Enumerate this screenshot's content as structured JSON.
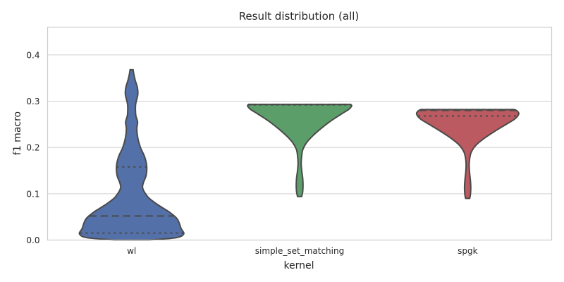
{
  "chart_data": {
    "type": "violin",
    "title": "Result distribution (all)",
    "xlabel": "kernel",
    "ylabel": "f1 macro",
    "ylim": [
      0,
      0.46
    ],
    "yticks": [
      0.0,
      0.1,
      0.2,
      0.3,
      0.4
    ],
    "ytick_labels": [
      "0.0",
      "0.1",
      "0.2",
      "0.3",
      "0.4"
    ],
    "grid": true,
    "series": [
      {
        "category": "wl",
        "color": "#5470a8",
        "density": [
          [
            0.0,
            0.34
          ],
          [
            0.005,
            0.85
          ],
          [
            0.013,
            1.0
          ],
          [
            0.025,
            0.95
          ],
          [
            0.045,
            0.88
          ],
          [
            0.06,
            0.73
          ],
          [
            0.075,
            0.52
          ],
          [
            0.09,
            0.34
          ],
          [
            0.105,
            0.24
          ],
          [
            0.115,
            0.21
          ],
          [
            0.125,
            0.23
          ],
          [
            0.14,
            0.28
          ],
          [
            0.16,
            0.29
          ],
          [
            0.18,
            0.25
          ],
          [
            0.2,
            0.17
          ],
          [
            0.22,
            0.12
          ],
          [
            0.24,
            0.1
          ],
          [
            0.255,
            0.115
          ],
          [
            0.27,
            0.08
          ],
          [
            0.29,
            0.075
          ],
          [
            0.3,
            0.09
          ],
          [
            0.315,
            0.12
          ],
          [
            0.33,
            0.11
          ],
          [
            0.345,
            0.07
          ],
          [
            0.36,
            0.04
          ],
          [
            0.368,
            0.03
          ]
        ],
        "quartiles": [
          0.015,
          0.052,
          0.158
        ]
      },
      {
        "category": "simple_set_matching",
        "color": "#5c9e6a",
        "density": [
          [
            0.094,
            0.04
          ],
          [
            0.105,
            0.06
          ],
          [
            0.12,
            0.065
          ],
          [
            0.135,
            0.058
          ],
          [
            0.15,
            0.04
          ],
          [
            0.165,
            0.03
          ],
          [
            0.18,
            0.038
          ],
          [
            0.195,
            0.06
          ],
          [
            0.21,
            0.13
          ],
          [
            0.225,
            0.25
          ],
          [
            0.24,
            0.4
          ],
          [
            0.255,
            0.57
          ],
          [
            0.265,
            0.7
          ],
          [
            0.275,
            0.84
          ],
          [
            0.283,
            0.95
          ],
          [
            0.29,
            1.0
          ],
          [
            0.293,
            0.98
          ]
        ],
        "quartiles": [
          0.292,
          0.293,
          0.293
        ]
      },
      {
        "category": "spgk",
        "color": "#bb5a60",
        "density": [
          [
            0.09,
            0.04
          ],
          [
            0.1,
            0.055
          ],
          [
            0.115,
            0.06
          ],
          [
            0.13,
            0.052
          ],
          [
            0.145,
            0.038
          ],
          [
            0.16,
            0.03
          ],
          [
            0.175,
            0.038
          ],
          [
            0.19,
            0.07
          ],
          [
            0.205,
            0.16
          ],
          [
            0.22,
            0.32
          ],
          [
            0.235,
            0.52
          ],
          [
            0.25,
            0.74
          ],
          [
            0.262,
            0.91
          ],
          [
            0.272,
            0.98
          ],
          [
            0.278,
            0.96
          ],
          [
            0.282,
            0.9
          ]
        ],
        "quartiles": [
          0.268,
          0.28,
          0.282
        ]
      }
    ]
  }
}
